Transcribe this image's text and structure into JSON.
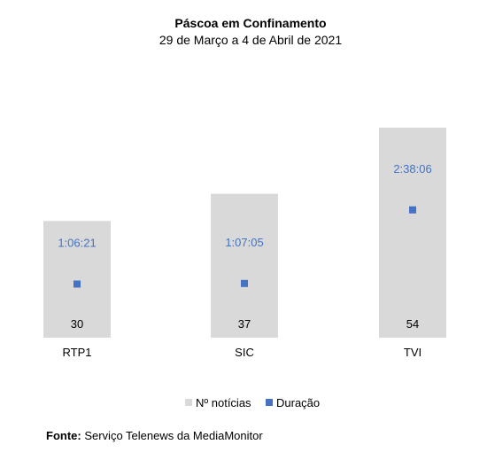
{
  "chart_data": {
    "type": "bar",
    "title": "Páscoa em Confinamento",
    "subtitle": "29 de Março a 4 de Abril de 2021",
    "categories": [
      "RTP1",
      "SIC",
      "TVI"
    ],
    "series": [
      {
        "name": "Nº notícias",
        "type": "bar",
        "values": [
          30,
          37,
          54
        ],
        "color": "#d9d9d9"
      },
      {
        "name": "Duração",
        "type": "marker",
        "values": [
          "1:06:21",
          "1:07:05",
          "2:38:06"
        ],
        "seconds": [
          3981,
          4025,
          9486
        ],
        "color": "#4472c4"
      }
    ],
    "legend": "bottom",
    "grid": false
  },
  "source": {
    "label": "Fonte:",
    "text": " Serviço Telenews da MediaMonitor"
  }
}
